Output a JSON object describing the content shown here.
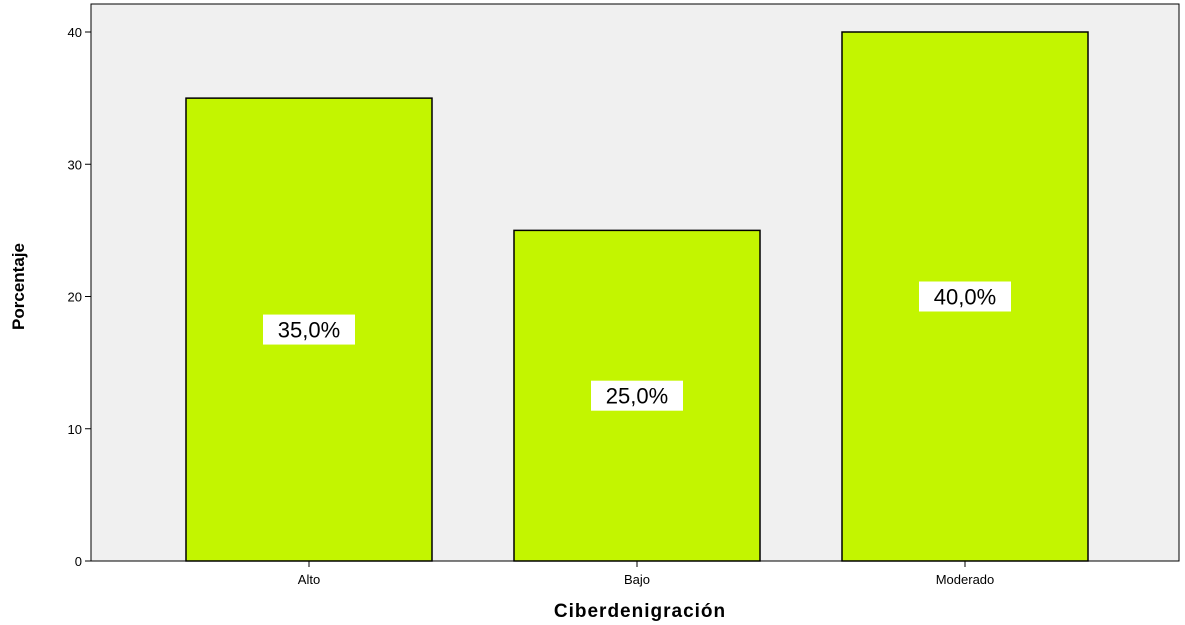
{
  "chart_data": {
    "type": "bar",
    "categories": [
      "Alto",
      "Bajo",
      "Moderado"
    ],
    "values": [
      35,
      25,
      40
    ],
    "data_labels": [
      "35,0%",
      "25,0%",
      "40,0%"
    ],
    "xlabel": "Ciberdenigración",
    "ylabel": "Porcentaje",
    "ylim": [
      0,
      40
    ],
    "yticks": [
      0,
      10,
      20,
      30,
      40
    ],
    "ytick_labels": [
      "0",
      "10",
      "20",
      "30",
      "40"
    ],
    "grid": false,
    "legend": "none",
    "colors": {
      "bar_fill": "#c3f500",
      "bar_stroke": "#000000",
      "plot_background": "#f0f0f0",
      "label_background": "#ffffff"
    }
  }
}
